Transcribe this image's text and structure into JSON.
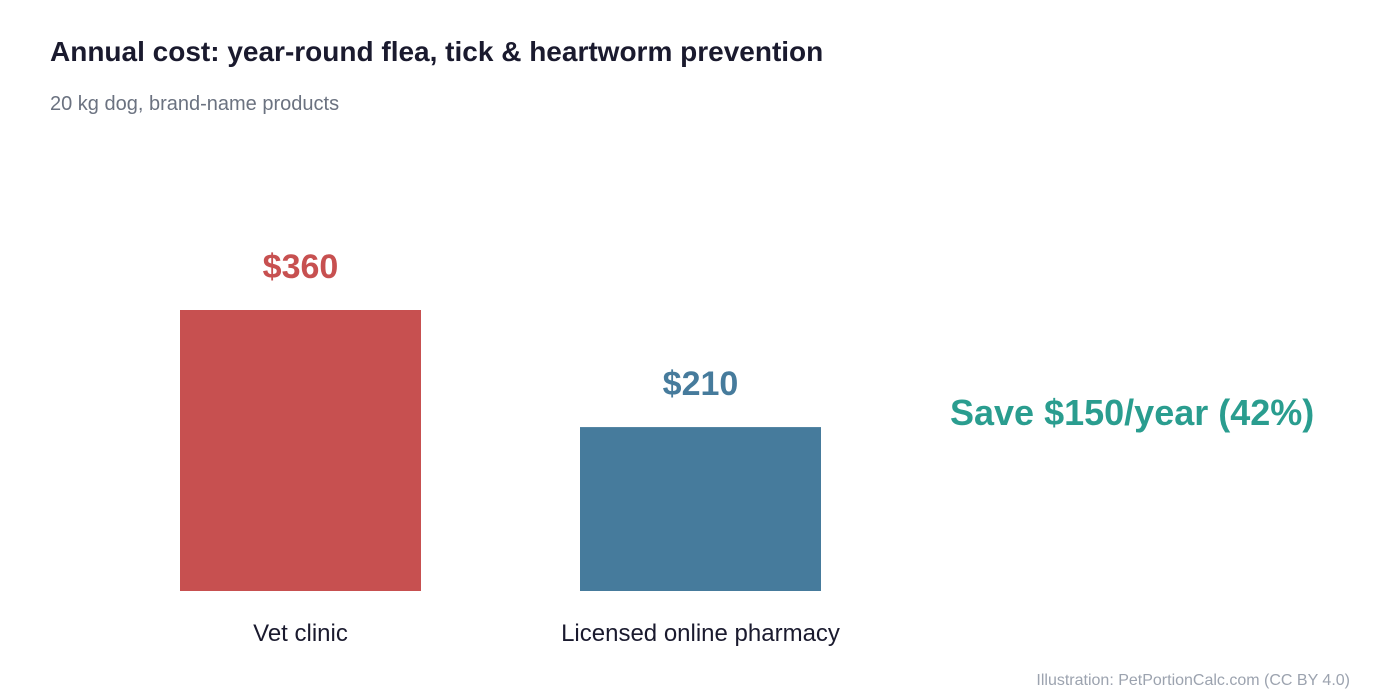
{
  "chart_data": {
    "type": "bar",
    "title": "Annual cost: year-round flea, tick & heartworm prevention",
    "subtitle": "20 kg dog, brand-name products",
    "categories": [
      "Vet clinic",
      "Licensed online pharmacy"
    ],
    "values": [
      360,
      210
    ],
    "value_labels": [
      "$360",
      "$210"
    ],
    "colors": [
      "#c75050",
      "#467b9c"
    ],
    "annotation": "Save $150/year (42%)",
    "annotation_color": "#2a9d8f",
    "xlabel": "",
    "ylabel": "",
    "grid": false
  },
  "footer": {
    "credit": "Illustration: PetPortionCalc.com (CC BY 4.0)"
  },
  "colors": {
    "title": "#1a1a2e",
    "subtitle": "#6b7280",
    "category_label": "#1a1a2e",
    "footer": "#9ca3af"
  }
}
